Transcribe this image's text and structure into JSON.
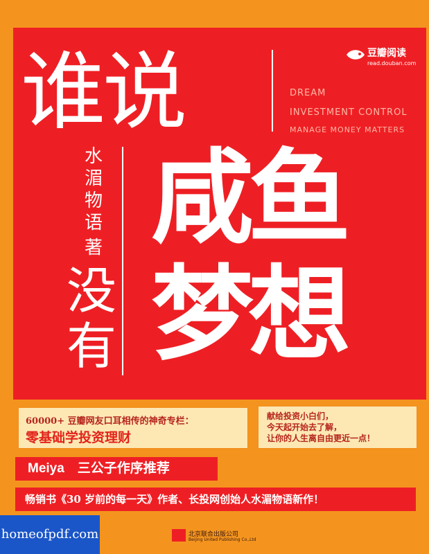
{
  "title": {
    "line1": "谁说",
    "line2a": "咸鱼",
    "line2b": "没有",
    "line3": "梦想"
  },
  "author": {
    "name": "水湄物语",
    "role": "著"
  },
  "english_tags": [
    "DREAM",
    "INVESTMENT CONTROL",
    "MANAGE MONEY MATTERS"
  ],
  "brand": {
    "name": "豆瓣阅读",
    "url": "read.douban.com",
    "icon": "douban-fish-icon"
  },
  "promo_left": {
    "line1": "60000+ 豆瓣网友口耳相传的神奇专栏：",
    "line2": "零基础学投资理财"
  },
  "promo_right": {
    "line1": "献给投资小白们，",
    "line2": "今天起开始去了解，",
    "line3": "让你的人生离自由更近一点！"
  },
  "banner1": "Meiya　三公子作序推荐",
  "banner2": "畅销书《30 岁前的每一天》作者、长投网创始人水湄物语新作！",
  "publisher": {
    "name": "北京联合出版公司",
    "name_en": "Beijing United Publishing Co.,Ltd",
    "icon": "publisher-logo-icon"
  },
  "watermark": "homeofpdf.com",
  "colors": {
    "background": "#f4941e",
    "panel": "#ee1f24",
    "box": "#fde8b4"
  }
}
